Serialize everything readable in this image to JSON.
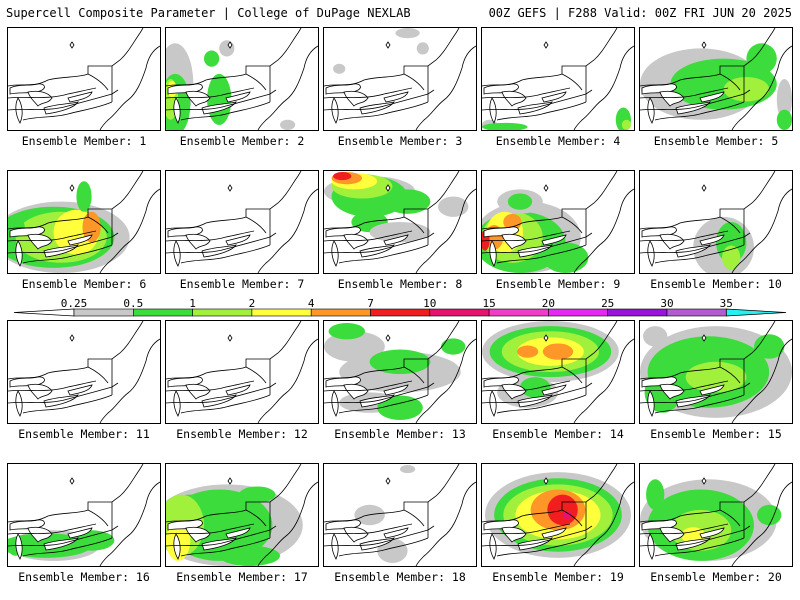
{
  "header": {
    "left": "Supercell Composite Parameter | College of DuPage NEXLAB",
    "right": "00Z GEFS | F288 Valid: 00Z FRI JUN 20 2025"
  },
  "colors": {
    "c025": "#c8c8c8",
    "c05": "#3cdc3c",
    "c1": "#a0f03c",
    "c2": "#ffff3c",
    "c4": "#ff9628",
    "c7": "#f01e1e",
    "c10": "#e6146e",
    "c15": "#f03cc8",
    "c20": "#e628f0",
    "c25": "#9614dc",
    "c30": "#b45ad2",
    "c35": "#28f0f0"
  },
  "colorbar": {
    "labels": [
      "0.25",
      "0.5",
      "1",
      "2",
      "4",
      "7",
      "10",
      "15",
      "20",
      "25",
      "30",
      "35"
    ]
  },
  "members": [
    {
      "label": "Ensemble Member: 1",
      "blobs": []
    },
    {
      "label": "Ensemble Member: 2",
      "blobs": [
        [
          "c025",
          0.06,
          0.55,
          0.12,
          0.4
        ],
        [
          "c05",
          0.06,
          0.75,
          0.1,
          0.3
        ],
        [
          "c1",
          0.03,
          0.7,
          0.05,
          0.2
        ],
        [
          "c2",
          0.04,
          0.6,
          0.03,
          0.08
        ],
        [
          "c05",
          0.35,
          0.7,
          0.08,
          0.25
        ],
        [
          "c05",
          0.3,
          0.3,
          0.05,
          0.08
        ],
        [
          "c025",
          0.4,
          0.2,
          0.05,
          0.08
        ],
        [
          "c025",
          0.8,
          0.95,
          0.05,
          0.05
        ]
      ]
    },
    {
      "label": "Ensemble Member: 3",
      "blobs": [
        [
          "c025",
          0.55,
          0.05,
          0.08,
          0.05
        ],
        [
          "c025",
          0.65,
          0.2,
          0.04,
          0.06
        ],
        [
          "c025",
          0.1,
          0.4,
          0.04,
          0.05
        ]
      ]
    },
    {
      "label": "Ensemble Member: 4",
      "blobs": [
        [
          "c025",
          0.05,
          0.95,
          0.05,
          0.05
        ],
        [
          "c05",
          0.15,
          0.97,
          0.15,
          0.04
        ],
        [
          "c05",
          0.93,
          0.9,
          0.05,
          0.12
        ],
        [
          "c1",
          0.95,
          0.95,
          0.03,
          0.05
        ]
      ]
    },
    {
      "label": "Ensemble Member: 5",
      "blobs": [
        [
          "c025",
          0.4,
          0.55,
          0.4,
          0.35
        ],
        [
          "c05",
          0.55,
          0.55,
          0.35,
          0.25
        ],
        [
          "c05",
          0.8,
          0.3,
          0.1,
          0.15
        ],
        [
          "c1",
          0.7,
          0.6,
          0.15,
          0.12
        ],
        [
          "c025",
          0.95,
          0.7,
          0.05,
          0.2
        ],
        [
          "c05",
          0.95,
          0.9,
          0.05,
          0.1
        ]
      ]
    },
    {
      "label": "Ensemble Member: 6",
      "blobs": [
        [
          "c025",
          0.35,
          0.65,
          0.45,
          0.35
        ],
        [
          "c05",
          0.3,
          0.65,
          0.4,
          0.3
        ],
        [
          "c1",
          0.35,
          0.65,
          0.3,
          0.25
        ],
        [
          "c2",
          0.45,
          0.6,
          0.15,
          0.22
        ],
        [
          "c4",
          0.55,
          0.55,
          0.06,
          0.15
        ],
        [
          "c05",
          0.5,
          0.25,
          0.05,
          0.15
        ],
        [
          "c05",
          0.05,
          0.55,
          0.06,
          0.1
        ]
      ]
    },
    {
      "label": "Ensemble Member: 7",
      "blobs": []
    },
    {
      "label": "Ensemble Member: 8",
      "blobs": [
        [
          "c025",
          0.3,
          0.2,
          0.3,
          0.15
        ],
        [
          "c05",
          0.3,
          0.25,
          0.25,
          0.2
        ],
        [
          "c1",
          0.25,
          0.15,
          0.2,
          0.12
        ],
        [
          "c2",
          0.2,
          0.1,
          0.15,
          0.08
        ],
        [
          "c4",
          0.15,
          0.07,
          0.1,
          0.06
        ],
        [
          "c7",
          0.12,
          0.05,
          0.06,
          0.04
        ],
        [
          "c05",
          0.55,
          0.3,
          0.15,
          0.12
        ],
        [
          "c05",
          0.3,
          0.5,
          0.12,
          0.1
        ],
        [
          "c025",
          0.5,
          0.6,
          0.2,
          0.1
        ],
        [
          "c025",
          0.85,
          0.35,
          0.1,
          0.1
        ]
      ]
    },
    {
      "label": "Ensemble Member: 9",
      "blobs": [
        [
          "c025",
          0.3,
          0.65,
          0.35,
          0.35
        ],
        [
          "c05",
          0.25,
          0.7,
          0.3,
          0.3
        ],
        [
          "c1",
          0.2,
          0.65,
          0.2,
          0.25
        ],
        [
          "c2",
          0.15,
          0.6,
          0.12,
          0.2
        ],
        [
          "c4",
          0.08,
          0.65,
          0.06,
          0.12
        ],
        [
          "c7",
          0.02,
          0.68,
          0.03,
          0.1
        ],
        [
          "c05",
          0.55,
          0.85,
          0.15,
          0.15
        ],
        [
          "c025",
          0.25,
          0.3,
          0.15,
          0.12
        ],
        [
          "c05",
          0.25,
          0.3,
          0.08,
          0.08
        ],
        [
          "c4",
          0.2,
          0.5,
          0.06,
          0.08
        ]
      ]
    },
    {
      "label": "Ensemble Member: 10",
      "blobs": [
        [
          "c025",
          0.55,
          0.75,
          0.2,
          0.3
        ],
        [
          "c05",
          0.6,
          0.7,
          0.1,
          0.2
        ],
        [
          "c1",
          0.6,
          0.85,
          0.06,
          0.12
        ]
      ]
    },
    {
      "label": "Ensemble Member: 11",
      "blobs": []
    },
    {
      "label": "Ensemble Member: 12",
      "blobs": []
    },
    {
      "label": "Ensemble Member: 13",
      "blobs": [
        [
          "c025",
          0.2,
          0.25,
          0.2,
          0.15
        ],
        [
          "c025",
          0.5,
          0.5,
          0.4,
          0.2
        ],
        [
          "c05",
          0.5,
          0.4,
          0.2,
          0.12
        ],
        [
          "c05",
          0.15,
          0.1,
          0.12,
          0.08
        ],
        [
          "c05",
          0.85,
          0.25,
          0.08,
          0.08
        ],
        [
          "c025",
          0.3,
          0.8,
          0.2,
          0.1
        ],
        [
          "c05",
          0.5,
          0.85,
          0.15,
          0.12
        ]
      ]
    },
    {
      "label": "Ensemble Member: 14",
      "blobs": [
        [
          "c025",
          0.45,
          0.3,
          0.45,
          0.3
        ],
        [
          "c05",
          0.45,
          0.3,
          0.4,
          0.25
        ],
        [
          "c1",
          0.45,
          0.3,
          0.32,
          0.2
        ],
        [
          "c2",
          0.45,
          0.3,
          0.22,
          0.14
        ],
        [
          "c4",
          0.5,
          0.3,
          0.1,
          0.08
        ],
        [
          "c4",
          0.3,
          0.3,
          0.07,
          0.06
        ],
        [
          "c025",
          0.3,
          0.7,
          0.2,
          0.15
        ],
        [
          "c05",
          0.35,
          0.65,
          0.1,
          0.1
        ]
      ]
    },
    {
      "label": "Ensemble Member: 15",
      "blobs": [
        [
          "c025",
          0.5,
          0.5,
          0.5,
          0.45
        ],
        [
          "c05",
          0.45,
          0.5,
          0.4,
          0.35
        ],
        [
          "c1",
          0.5,
          0.55,
          0.2,
          0.15
        ],
        [
          "c05",
          0.15,
          0.7,
          0.12,
          0.2
        ],
        [
          "c05",
          0.85,
          0.25,
          0.1,
          0.12
        ],
        [
          "c025",
          0.1,
          0.15,
          0.08,
          0.1
        ]
      ]
    },
    {
      "label": "Ensemble Member: 16",
      "blobs": [
        [
          "c025",
          0.3,
          0.8,
          0.3,
          0.15
        ],
        [
          "c05",
          0.25,
          0.8,
          0.3,
          0.12
        ],
        [
          "c05",
          0.55,
          0.75,
          0.15,
          0.1
        ],
        [
          "c05",
          0.05,
          0.82,
          0.05,
          0.08
        ]
      ]
    },
    {
      "label": "Ensemble Member: 17",
      "blobs": [
        [
          "c025",
          0.4,
          0.6,
          0.5,
          0.4
        ],
        [
          "c05",
          0.35,
          0.6,
          0.35,
          0.35
        ],
        [
          "c05",
          0.15,
          0.45,
          0.12,
          0.15
        ],
        [
          "c1",
          0.1,
          0.6,
          0.15,
          0.3
        ],
        [
          "c2",
          0.08,
          0.75,
          0.08,
          0.2
        ],
        [
          "c05",
          0.6,
          0.3,
          0.12,
          0.08
        ],
        [
          "c05",
          0.55,
          0.9,
          0.2,
          0.1
        ]
      ]
    },
    {
      "label": "Ensemble Member: 18",
      "blobs": [
        [
          "c025",
          0.55,
          0.05,
          0.05,
          0.04
        ],
        [
          "c025",
          0.3,
          0.5,
          0.1,
          0.1
        ],
        [
          "c025",
          0.45,
          0.85,
          0.1,
          0.12
        ]
      ]
    },
    {
      "label": "Ensemble Member: 19",
      "blobs": [
        [
          "c025",
          0.5,
          0.5,
          0.48,
          0.42
        ],
        [
          "c05",
          0.5,
          0.5,
          0.42,
          0.36
        ],
        [
          "c1",
          0.5,
          0.5,
          0.36,
          0.3
        ],
        [
          "c2",
          0.5,
          0.5,
          0.28,
          0.24
        ],
        [
          "c4",
          0.5,
          0.45,
          0.18,
          0.2
        ],
        [
          "c7",
          0.53,
          0.45,
          0.1,
          0.15
        ],
        [
          "c10",
          0.56,
          0.5,
          0.03,
          0.04
        ]
      ]
    },
    {
      "label": "Ensemble Member: 20",
      "blobs": [
        [
          "c025",
          0.45,
          0.55,
          0.45,
          0.4
        ],
        [
          "c05",
          0.4,
          0.6,
          0.35,
          0.35
        ],
        [
          "c1",
          0.4,
          0.65,
          0.2,
          0.2
        ],
        [
          "c2",
          0.35,
          0.7,
          0.08,
          0.08
        ],
        [
          "c05",
          0.1,
          0.3,
          0.06,
          0.15
        ],
        [
          "c05",
          0.85,
          0.5,
          0.08,
          0.1
        ]
      ]
    }
  ]
}
